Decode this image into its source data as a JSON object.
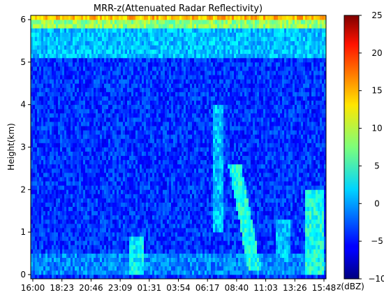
{
  "chart_data": {
    "type": "heatmap",
    "title": "MRR-z(Attenuated Radar Reflectivity)",
    "ylabel": "Height(km)",
    "xlabel": "",
    "colorbar_label": "z(dBZ)",
    "x_ticks": [
      "16:00",
      "18:23",
      "20:46",
      "23:09",
      "01:31",
      "03:54",
      "06:17",
      "08:40",
      "11:03",
      "13:26",
      "15:48"
    ],
    "y_ticks": [
      0,
      1,
      2,
      3,
      4,
      5,
      6
    ],
    "ylim": [
      -0.1,
      6.1
    ],
    "colorbar_ticks": [
      -10,
      -5,
      0,
      5,
      10,
      15,
      20,
      25
    ],
    "colorbar_range": [
      -10,
      25
    ],
    "colormap": "jet",
    "grid": false,
    "background_dbz": -4,
    "features": [
      {
        "name": "near-surface echo band",
        "t0": 0.0,
        "t1": 1.0,
        "h0": 0.0,
        "h1": 0.45,
        "dbz": -1
      },
      {
        "name": "echo column 00:40",
        "t0": 0.335,
        "t1": 0.385,
        "h0": 0.0,
        "h1": 0.85,
        "dbz": 3
      },
      {
        "name": "slanted echo 07:00-09:30",
        "t0": 0.66,
        "t1": 0.8,
        "h0": 0.1,
        "h1": 2.6,
        "dbz": 4
      },
      {
        "name": "echo streak 06:17",
        "t0": 0.62,
        "t1": 0.65,
        "h0": 1.0,
        "h1": 4.0,
        "dbz": 1
      },
      {
        "name": "echo 15:00",
        "t0": 0.93,
        "t1": 0.995,
        "h0": 0.0,
        "h1": 2.0,
        "dbz": 4
      },
      {
        "name": "echo 12:00",
        "t0": 0.83,
        "t1": 0.88,
        "h0": 0.3,
        "h1": 1.3,
        "dbz": 1
      },
      {
        "name": "upper layer",
        "t0": 0.0,
        "t1": 1.0,
        "h0": 5.1,
        "h1": 5.8,
        "dbz": 1
      },
      {
        "name": "top attenuation layer",
        "t0": 0.0,
        "t1": 1.0,
        "h0": 5.8,
        "h1": 5.95,
        "dbz": 8
      },
      {
        "name": "top edge",
        "t0": 0.0,
        "t1": 1.0,
        "h0": 5.95,
        "h1": 6.1,
        "dbz": 14
      }
    ]
  }
}
